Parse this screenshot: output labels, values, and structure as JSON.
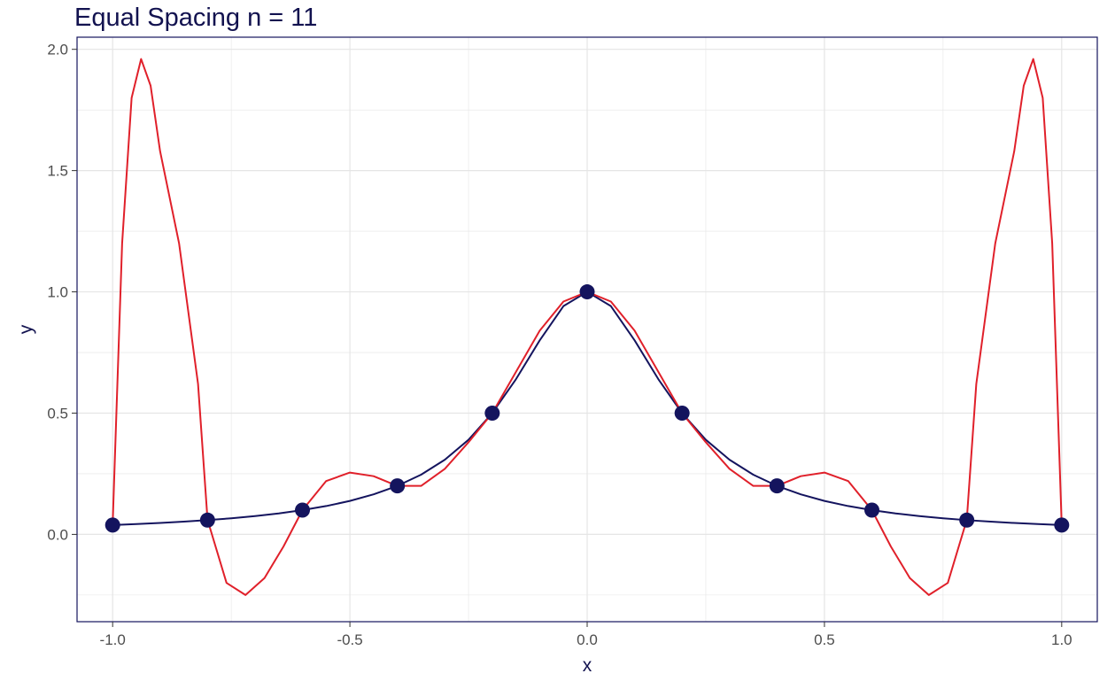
{
  "chart_data": {
    "type": "line",
    "title": "Equal Spacing n = 11",
    "xlabel": "x",
    "ylabel": "y",
    "xlim": [
      -1.075,
      1.075
    ],
    "ylim": [
      -0.36,
      2.05
    ],
    "xticks": [
      -1.0,
      -0.5,
      0.0,
      0.5,
      1.0
    ],
    "xtick_labels": [
      "-1.0",
      "-0.5",
      "0.0",
      "0.5",
      "1.0"
    ],
    "yticks": [
      0.0,
      0.5,
      1.0,
      1.5,
      2.0
    ],
    "ytick_labels": [
      "0.0",
      "0.5",
      "1.0",
      "1.5",
      "2.0"
    ],
    "grid": true,
    "legend": "none",
    "colors": {
      "runge": "#14145e",
      "interp": "#e0202a",
      "points": "#14145e",
      "panel_border": "#14145e",
      "grid": "#e5e5e5"
    },
    "series": [
      {
        "type": "line",
        "values": [
          [
            -1.0,
            0.0385
          ],
          [
            -0.95,
            0.0424
          ],
          [
            -0.9,
            0.0471
          ],
          [
            -0.85,
            0.0525
          ],
          [
            -0.8,
            0.0588
          ],
          [
            -0.75,
            0.0664
          ],
          [
            -0.7,
            0.0755
          ],
          [
            -0.65,
            0.0865
          ],
          [
            -0.6,
            0.1
          ],
          [
            -0.55,
            0.1168
          ],
          [
            -0.5,
            0.1379
          ],
          [
            -0.45,
            0.165
          ],
          [
            -0.4,
            0.2
          ],
          [
            -0.35,
            0.2462
          ],
          [
            -0.3,
            0.3077
          ],
          [
            -0.25,
            0.3902
          ],
          [
            -0.2,
            0.5
          ],
          [
            -0.15,
            0.64
          ],
          [
            -0.1,
            0.8
          ],
          [
            -0.05,
            0.9412
          ],
          [
            0.0,
            1.0
          ],
          [
            0.05,
            0.9412
          ],
          [
            0.1,
            0.8
          ],
          [
            0.15,
            0.64
          ],
          [
            0.2,
            0.5
          ],
          [
            0.25,
            0.3902
          ],
          [
            0.3,
            0.3077
          ],
          [
            0.35,
            0.2462
          ],
          [
            0.4,
            0.2
          ],
          [
            0.45,
            0.165
          ],
          [
            0.5,
            0.1379
          ],
          [
            0.55,
            0.1168
          ],
          [
            0.6,
            0.1
          ],
          [
            0.65,
            0.0865
          ],
          [
            0.7,
            0.0755
          ],
          [
            0.75,
            0.0664
          ],
          [
            0.8,
            0.0588
          ],
          [
            0.85,
            0.0525
          ],
          [
            0.9,
            0.0471
          ],
          [
            0.95,
            0.0424
          ],
          [
            1.0,
            0.0385
          ]
        ]
      },
      {
        "type": "line",
        "values": [
          [
            -1.0,
            0.04
          ],
          [
            -0.98,
            1.2
          ],
          [
            -0.96,
            1.8
          ],
          [
            -0.94,
            1.96
          ],
          [
            -0.92,
            1.85
          ],
          [
            -0.9,
            1.58
          ],
          [
            -0.86,
            1.2
          ],
          [
            -0.82,
            0.62
          ],
          [
            -0.8,
            0.06
          ],
          [
            -0.76,
            -0.2
          ],
          [
            -0.72,
            -0.25
          ],
          [
            -0.68,
            -0.18
          ],
          [
            -0.64,
            -0.05
          ],
          [
            -0.6,
            0.1
          ],
          [
            -0.55,
            0.22
          ],
          [
            -0.5,
            0.255
          ],
          [
            -0.45,
            0.24
          ],
          [
            -0.4,
            0.2
          ],
          [
            -0.35,
            0.2
          ],
          [
            -0.3,
            0.27
          ],
          [
            -0.25,
            0.38
          ],
          [
            -0.2,
            0.5
          ],
          [
            -0.15,
            0.67
          ],
          [
            -0.1,
            0.84
          ],
          [
            -0.05,
            0.96
          ],
          [
            0.0,
            1.0
          ],
          [
            0.05,
            0.96
          ],
          [
            0.1,
            0.84
          ],
          [
            0.15,
            0.67
          ],
          [
            0.2,
            0.5
          ],
          [
            0.25,
            0.38
          ],
          [
            0.3,
            0.27
          ],
          [
            0.35,
            0.2
          ],
          [
            0.4,
            0.2
          ],
          [
            0.45,
            0.24
          ],
          [
            0.5,
            0.255
          ],
          [
            0.55,
            0.22
          ],
          [
            0.6,
            0.1
          ],
          [
            0.64,
            -0.05
          ],
          [
            0.68,
            -0.18
          ],
          [
            0.72,
            -0.25
          ],
          [
            0.76,
            -0.2
          ],
          [
            0.8,
            0.06
          ],
          [
            0.82,
            0.62
          ],
          [
            0.86,
            1.2
          ],
          [
            0.9,
            1.58
          ],
          [
            0.92,
            1.85
          ],
          [
            0.94,
            1.96
          ],
          [
            0.96,
            1.8
          ],
          [
            0.98,
            1.2
          ],
          [
            1.0,
            0.04
          ]
        ]
      },
      {
        "type": "scatter",
        "values": [
          [
            -1.0,
            0.0385
          ],
          [
            -0.8,
            0.0588
          ],
          [
            -0.6,
            0.1
          ],
          [
            -0.4,
            0.2
          ],
          [
            -0.2,
            0.5
          ],
          [
            0.0,
            1.0
          ],
          [
            0.2,
            0.5
          ],
          [
            0.4,
            0.2
          ],
          [
            0.6,
            0.1
          ],
          [
            0.8,
            0.0588
          ],
          [
            1.0,
            0.0385
          ]
        ]
      }
    ]
  }
}
